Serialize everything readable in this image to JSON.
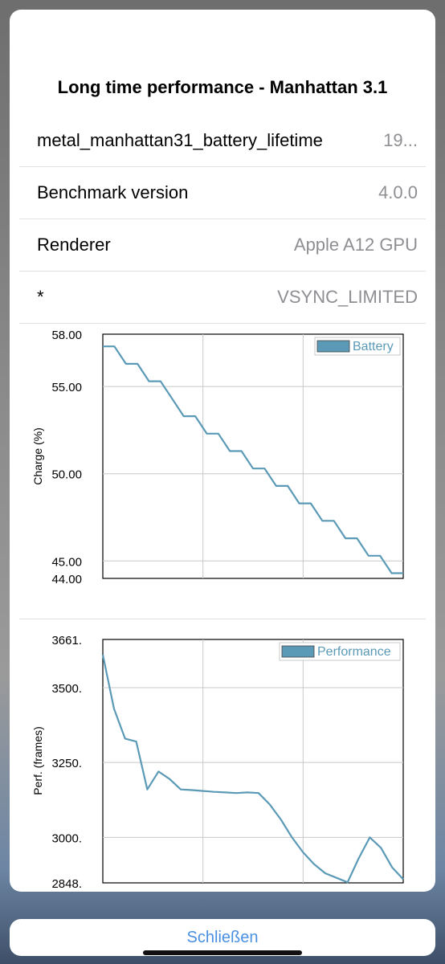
{
  "dialog": {
    "title": "Long time performance - Manhattan 3.1",
    "rows": [
      {
        "key": "metal_manhattan31_battery_lifetime",
        "value": "19..."
      },
      {
        "key": "Benchmark version",
        "value": "4.0.0"
      },
      {
        "key": "Renderer",
        "value": "Apple A12 GPU"
      },
      {
        "key": "*",
        "value": "VSYNC_LIMITED"
      }
    ],
    "close_label": "Schließen"
  },
  "colors": {
    "series": "#5b9ab7",
    "accent": "#4a90e2"
  },
  "chart_data": [
    {
      "type": "line",
      "ylabel": "Charge (%)",
      "ylim": [
        44.0,
        58.0
      ],
      "yticks": [
        "58.00",
        "55.00",
        "50.00",
        "45.00",
        "44.00"
      ],
      "ytick_values": [
        58,
        55,
        50,
        45,
        44
      ],
      "grid": true,
      "legend": "top-right",
      "series": [
        {
          "name": "Battery",
          "x": [
            0,
            1,
            2,
            3,
            4,
            5,
            6,
            7,
            8,
            9,
            10,
            11,
            12,
            13,
            14,
            15,
            16,
            17,
            18,
            19,
            20,
            21,
            22,
            23,
            24,
            25,
            26
          ],
          "values": [
            57.3,
            57.3,
            56.3,
            56.3,
            55.3,
            55.3,
            54.3,
            53.3,
            53.3,
            52.3,
            52.3,
            51.3,
            51.3,
            50.3,
            50.3,
            49.3,
            49.3,
            48.3,
            48.3,
            47.3,
            47.3,
            46.3,
            46.3,
            45.3,
            45.3,
            44.3,
            44.3
          ]
        }
      ]
    },
    {
      "type": "line",
      "ylabel": "Perf. (frames)",
      "ylim": [
        2848,
        3661
      ],
      "yticks": [
        "3661.",
        "3500.",
        "3250.",
        "3000.",
        "2848."
      ],
      "ytick_values": [
        3661,
        3500,
        3250,
        3000,
        2848
      ],
      "grid": true,
      "legend": "top-right",
      "series": [
        {
          "name": "Performance",
          "x": [
            0,
            1,
            2,
            3,
            4,
            5,
            6,
            7,
            8,
            9,
            10,
            11,
            12,
            13,
            14,
            15,
            16,
            17,
            18,
            19,
            20,
            21,
            22,
            23,
            24,
            25,
            26,
            27
          ],
          "values": [
            3610,
            3430,
            3330,
            3320,
            3160,
            3220,
            3195,
            3160,
            3158,
            3155,
            3152,
            3150,
            3148,
            3150,
            3148,
            3110,
            3060,
            3000,
            2950,
            2910,
            2880,
            2865,
            2850,
            2930,
            3000,
            2965,
            2900,
            2860
          ]
        }
      ]
    }
  ]
}
